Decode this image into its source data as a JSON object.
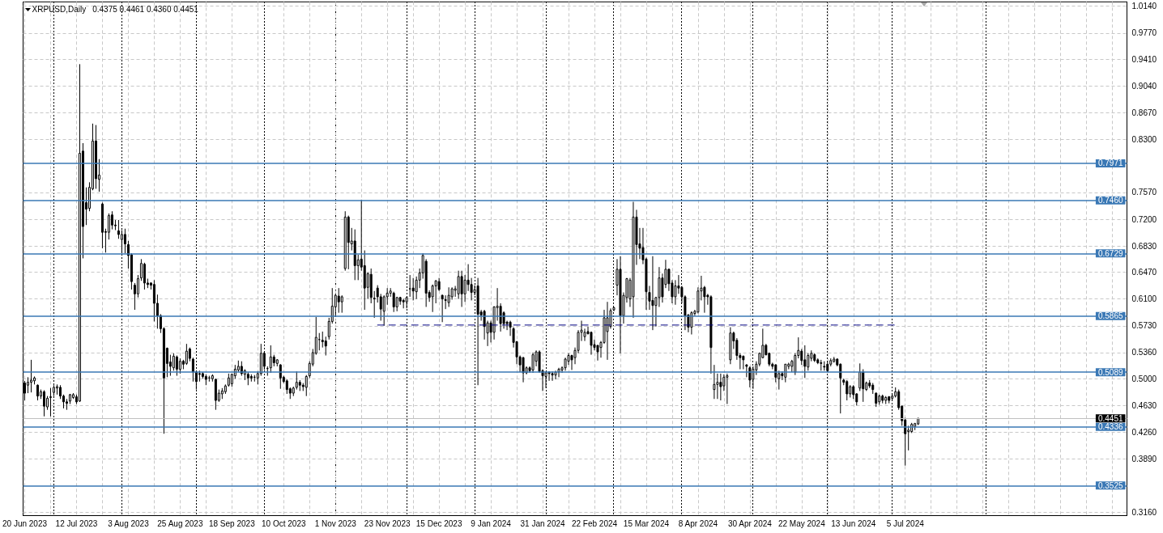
{
  "chart_data": {
    "type": "candlestick",
    "title": "XRPUSD,Daily",
    "subtitle": "0.4375 0.4461 0.4360 0.4451",
    "categories": [
      "20 Jun 2023",
      null,
      null,
      null,
      null,
      null,
      null,
      null,
      null,
      null,
      null,
      null,
      null,
      null,
      null,
      null,
      "12 Jul 2023",
      null,
      null,
      null,
      null,
      null,
      null,
      null,
      null,
      null,
      null,
      null,
      null,
      null,
      null,
      null,
      "3 Aug 2023",
      null,
      null,
      null,
      null,
      null,
      null,
      null,
      null,
      null,
      null,
      null,
      null,
      null,
      null,
      null,
      "25 Aug 2023",
      null,
      null,
      null,
      null,
      null,
      null,
      null,
      null,
      null,
      null,
      null,
      null,
      null,
      null,
      null,
      "18 Sep 2023",
      null,
      null,
      null,
      null,
      null,
      null,
      null,
      null,
      null,
      null,
      null,
      null,
      null,
      null,
      null,
      "10 Oct 2023",
      null,
      null,
      null,
      null,
      null,
      null,
      null,
      null,
      null,
      null,
      null,
      null,
      null,
      null,
      null,
      "1 Nov 2023",
      null,
      null,
      null,
      null,
      null,
      null,
      null,
      null,
      null,
      null,
      null,
      null,
      null,
      null,
      null,
      "23 Nov 2023",
      null,
      null,
      null,
      null,
      null,
      null,
      null,
      null,
      null,
      null,
      null,
      null,
      null,
      null,
      null,
      "15 Dec 2023",
      null,
      null,
      null,
      null,
      null,
      null,
      null,
      null,
      null,
      null,
      null,
      null,
      null,
      null,
      null,
      "9 Jan 2024",
      null,
      null,
      null,
      null,
      null,
      null,
      null,
      null,
      null,
      null,
      null,
      null,
      null,
      null,
      null,
      "31 Jan 2024",
      null,
      null,
      null,
      null,
      null,
      null,
      null,
      null,
      null,
      null,
      null,
      null,
      null,
      null,
      null,
      "22 Feb 2024",
      null,
      null,
      null,
      null,
      null,
      null,
      null,
      null,
      null,
      null,
      null,
      null,
      null,
      null,
      null,
      "15 Mar 2024",
      null,
      null,
      null,
      null,
      null,
      null,
      null,
      null,
      null,
      null,
      null,
      null,
      null,
      null,
      null,
      "8 Apr 2024",
      null,
      null,
      null,
      null,
      null,
      null,
      null,
      null,
      null,
      null,
      null,
      null,
      null,
      null,
      null,
      "30 Apr 2024",
      null,
      null,
      null,
      null,
      null,
      null,
      null,
      null,
      null,
      null,
      null,
      null,
      null,
      null,
      null,
      "22 May 2024",
      null,
      null,
      null,
      null,
      null,
      null,
      null,
      null,
      null,
      null,
      null,
      null,
      null,
      null,
      null,
      "13 Jun 2024",
      null,
      null,
      null,
      null,
      null,
      null,
      null,
      null,
      null,
      null,
      null,
      null,
      null,
      null,
      null,
      "5 Jul 2024",
      null,
      null,
      null,
      null,
      null,
      null,
      null,
      null,
      null,
      null,
      null,
      null,
      null,
      null,
      null,
      null,
      null,
      null,
      null,
      null,
      null,
      null,
      null,
      null,
      null,
      null,
      null,
      null,
      null,
      null,
      null,
      null,
      null,
      null,
      null,
      null,
      null,
      null,
      null,
      null,
      null,
      null,
      null,
      null,
      null,
      null,
      null,
      null,
      null,
      null,
      null,
      null,
      null,
      null,
      null,
      null,
      null,
      null,
      null,
      null,
      null,
      null,
      null,
      null,
      null,
      null,
      null,
      null
    ],
    "ohlc": [
      [
        0.494,
        0.497,
        0.47,
        0.48
      ],
      [
        0.491,
        0.502,
        0.48,
        0.495
      ],
      [
        0.495,
        0.526,
        0.481,
        0.498
      ],
      [
        0.497,
        0.503,
        0.492,
        0.501
      ],
      [
        0.491,
        0.492,
        0.47,
        0.476
      ],
      [
        0.476,
        0.485,
        0.472,
        0.482
      ],
      [
        0.482,
        0.484,
        0.448,
        0.462
      ],
      [
        0.461,
        0.476,
        0.457,
        0.473
      ],
      [
        0.474,
        0.487,
        0.448,
        0.475
      ],
      [
        0.481,
        0.491,
        0.476,
        0.488
      ],
      [
        0.487,
        0.492,
        0.478,
        0.489
      ],
      [
        0.488,
        0.491,
        0.472,
        0.476
      ],
      [
        0.476,
        0.478,
        0.459,
        0.468
      ],
      [
        0.468,
        0.472,
        0.457,
        0.466
      ],
      [
        0.469,
        0.479,
        0.465,
        0.478
      ],
      [
        0.474,
        0.48,
        0.472,
        0.478
      ],
      [
        0.475,
        0.478,
        0.465,
        0.468
      ],
      [
        0.469,
        0.934,
        0.468,
        0.811
      ],
      [
        0.814,
        0.825,
        0.666,
        0.71
      ],
      [
        0.743,
        0.764,
        0.712,
        0.734
      ],
      [
        0.735,
        0.771,
        0.731,
        0.764
      ],
      [
        0.762,
        0.852,
        0.76,
        0.828
      ],
      [
        0.828,
        0.85,
        0.762,
        0.776
      ],
      [
        0.775,
        0.803,
        0.758,
        0.781
      ],
      [
        0.741,
        0.743,
        0.68,
        0.702
      ],
      [
        0.703,
        0.707,
        0.674,
        0.702
      ],
      [
        0.702,
        0.728,
        0.692,
        0.725
      ],
      [
        0.726,
        0.731,
        0.706,
        0.712
      ],
      [
        0.712,
        0.719,
        0.705,
        0.711
      ],
      [
        0.704,
        0.719,
        0.693,
        0.699
      ],
      [
        0.692,
        0.705,
        0.673,
        0.699
      ],
      [
        0.699,
        0.707,
        0.673,
        0.686
      ],
      [
        0.685,
        0.69,
        0.652,
        0.67
      ],
      [
        0.671,
        0.673,
        0.623,
        0.634
      ],
      [
        0.629,
        0.632,
        0.595,
        0.617
      ],
      [
        0.617,
        0.643,
        0.612,
        0.638
      ],
      [
        0.639,
        0.665,
        0.635,
        0.659
      ],
      [
        0.658,
        0.66,
        0.623,
        0.632
      ],
      [
        0.632,
        0.638,
        0.625,
        0.63
      ],
      [
        0.632,
        0.633,
        0.623,
        0.629
      ],
      [
        0.63,
        0.636,
        0.579,
        0.604
      ],
      [
        0.604,
        0.616,
        0.569,
        0.587
      ],
      [
        0.587,
        0.589,
        0.563,
        0.569
      ],
      [
        0.569,
        0.571,
        0.424,
        0.501
      ],
      [
        0.542,
        0.543,
        0.502,
        0.521
      ],
      [
        0.523,
        0.533,
        0.504,
        0.517
      ],
      [
        0.515,
        0.535,
        0.511,
        0.531
      ],
      [
        0.53,
        0.532,
        0.504,
        0.513
      ],
      [
        0.513,
        0.528,
        0.507,
        0.524
      ],
      [
        0.524,
        0.526,
        0.513,
        0.52
      ],
      [
        0.521,
        0.548,
        0.519,
        0.538
      ],
      [
        0.541,
        0.543,
        0.524,
        0.528
      ],
      [
        0.527,
        0.529,
        0.496,
        0.509
      ],
      [
        0.509,
        0.511,
        0.485,
        0.496
      ],
      [
        0.507,
        0.511,
        0.496,
        0.506
      ],
      [
        0.507,
        0.509,
        0.5,
        0.503
      ],
      [
        0.503,
        0.506,
        0.491,
        0.499
      ],
      [
        0.501,
        0.504,
        0.496,
        0.501
      ],
      [
        0.5,
        0.506,
        0.496,
        0.504
      ],
      [
        0.499,
        0.5,
        0.457,
        0.47
      ],
      [
        0.47,
        0.485,
        0.468,
        0.48
      ],
      [
        0.479,
        0.487,
        0.472,
        0.483
      ],
      [
        0.482,
        0.492,
        0.479,
        0.49
      ],
      [
        0.491,
        0.507,
        0.489,
        0.501
      ],
      [
        0.493,
        0.507,
        0.489,
        0.506
      ],
      [
        0.504,
        0.519,
        0.5,
        0.513
      ],
      [
        0.512,
        0.525,
        0.509,
        0.517
      ],
      [
        0.517,
        0.524,
        0.504,
        0.507
      ],
      [
        0.506,
        0.513,
        0.498,
        0.511
      ],
      [
        0.506,
        0.509,
        0.491,
        0.501
      ],
      [
        0.503,
        0.506,
        0.496,
        0.501
      ],
      [
        0.502,
        0.505,
        0.496,
        0.502
      ],
      [
        0.501,
        0.51,
        0.492,
        0.507
      ],
      [
        0.507,
        0.548,
        0.504,
        0.535
      ],
      [
        0.535,
        0.537,
        0.512,
        0.517
      ],
      [
        0.514,
        0.517,
        0.504,
        0.514
      ],
      [
        0.515,
        0.546,
        0.508,
        0.53
      ],
      [
        0.53,
        0.533,
        0.517,
        0.522
      ],
      [
        0.521,
        0.527,
        0.517,
        0.526
      ],
      [
        0.519,
        0.52,
        0.486,
        0.501
      ],
      [
        0.502,
        0.504,
        0.494,
        0.496
      ],
      [
        0.497,
        0.499,
        0.479,
        0.485
      ],
      [
        0.486,
        0.488,
        0.472,
        0.48
      ],
      [
        0.48,
        0.489,
        0.476,
        0.487
      ],
      [
        0.488,
        0.51,
        0.485,
        0.495
      ],
      [
        0.495,
        0.498,
        0.483,
        0.491
      ],
      [
        0.491,
        0.494,
        0.483,
        0.489
      ],
      [
        0.488,
        0.505,
        0.476,
        0.503
      ],
      [
        0.504,
        0.524,
        0.501,
        0.521
      ],
      [
        0.52,
        0.541,
        0.517,
        0.536
      ],
      [
        0.535,
        0.585,
        0.533,
        0.557
      ],
      [
        0.554,
        0.563,
        0.539,
        0.554
      ],
      [
        0.553,
        0.565,
        0.543,
        0.551
      ],
      [
        0.552,
        0.558,
        0.532,
        0.545
      ],
      [
        0.558,
        0.584,
        0.554,
        0.579
      ],
      [
        0.579,
        0.625,
        0.576,
        0.6
      ],
      [
        0.599,
        0.617,
        0.585,
        0.615
      ],
      [
        0.614,
        0.625,
        0.591,
        0.606
      ],
      [
        0.606,
        0.615,
        0.591,
        0.613
      ],
      [
        0.652,
        0.731,
        0.649,
        0.723
      ],
      [
        0.723,
        0.725,
        0.651,
        0.688
      ],
      [
        0.686,
        0.708,
        0.677,
        0.69
      ],
      [
        0.69,
        0.706,
        0.636,
        0.656
      ],
      [
        0.656,
        0.671,
        0.636,
        0.664
      ],
      [
        0.665,
        0.747,
        0.649,
        0.654
      ],
      [
        0.656,
        0.677,
        0.595,
        0.625
      ],
      [
        0.626,
        0.647,
        0.61,
        0.645
      ],
      [
        0.644,
        0.652,
        0.604,
        0.612
      ],
      [
        0.611,
        0.621,
        0.584,
        0.61
      ],
      [
        0.625,
        0.629,
        0.605,
        0.613
      ],
      [
        0.613,
        0.617,
        0.58,
        0.596
      ],
      [
        0.593,
        0.615,
        0.573,
        0.613
      ],
      [
        0.613,
        0.625,
        0.602,
        0.618
      ],
      [
        0.618,
        0.625,
        0.613,
        0.621
      ],
      [
        0.618,
        0.62,
        0.592,
        0.599
      ],
      [
        0.599,
        0.613,
        0.593,
        0.612
      ],
      [
        0.612,
        0.613,
        0.602,
        0.607
      ],
      [
        0.608,
        0.61,
        0.597,
        0.606
      ],
      [
        0.606,
        0.613,
        0.597,
        0.612
      ],
      [
        0.624,
        0.643,
        0.613,
        0.624
      ],
      [
        0.625,
        0.639,
        0.608,
        0.621
      ],
      [
        0.62,
        0.641,
        0.61,
        0.636
      ],
      [
        0.636,
        0.652,
        0.625,
        0.646
      ],
      [
        0.646,
        0.673,
        0.638,
        0.67
      ],
      [
        0.662,
        0.665,
        0.599,
        0.618
      ],
      [
        0.619,
        0.622,
        0.606,
        0.612
      ],
      [
        0.613,
        0.63,
        0.592,
        0.628
      ],
      [
        0.628,
        0.636,
        0.604,
        0.635
      ],
      [
        0.634,
        0.639,
        0.621,
        0.623
      ],
      [
        0.615,
        0.616,
        0.578,
        0.61
      ],
      [
        0.609,
        0.615,
        0.596,
        0.608
      ],
      [
        0.605,
        0.626,
        0.599,
        0.615
      ],
      [
        0.613,
        0.626,
        0.609,
        0.624
      ],
      [
        0.622,
        0.628,
        0.613,
        0.624
      ],
      [
        0.617,
        0.649,
        0.61,
        0.641
      ],
      [
        0.641,
        0.649,
        0.599,
        0.617
      ],
      [
        0.617,
        0.643,
        0.606,
        0.636
      ],
      [
        0.636,
        0.658,
        0.621,
        0.63
      ],
      [
        0.63,
        0.639,
        0.608,
        0.619
      ],
      [
        0.619,
        0.629,
        0.615,
        0.623
      ],
      [
        0.628,
        0.639,
        0.491,
        0.589
      ],
      [
        0.592,
        0.595,
        0.58,
        0.588
      ],
      [
        0.593,
        0.595,
        0.554,
        0.572
      ],
      [
        0.563,
        0.58,
        0.545,
        0.577
      ],
      [
        0.577,
        0.58,
        0.55,
        0.564
      ],
      [
        0.564,
        0.6,
        0.554,
        0.599
      ],
      [
        0.598,
        0.625,
        0.58,
        0.6
      ],
      [
        0.6,
        0.604,
        0.565,
        0.576
      ],
      [
        0.591,
        0.593,
        0.569,
        0.576
      ],
      [
        0.578,
        0.58,
        0.567,
        0.576
      ],
      [
        0.578,
        0.58,
        0.559,
        0.571
      ],
      [
        0.569,
        0.571,
        0.543,
        0.55
      ],
      [
        0.551,
        0.552,
        0.52,
        0.53
      ],
      [
        0.53,
        0.532,
        0.509,
        0.519
      ],
      [
        0.529,
        0.53,
        0.495,
        0.508
      ],
      [
        0.508,
        0.517,
        0.506,
        0.515
      ],
      [
        0.515,
        0.517,
        0.508,
        0.511
      ],
      [
        0.512,
        0.536,
        0.508,
        0.533
      ],
      [
        0.524,
        0.539,
        0.517,
        0.537
      ],
      [
        0.537,
        0.539,
        0.508,
        0.51
      ],
      [
        0.511,
        0.513,
        0.483,
        0.504
      ],
      [
        0.503,
        0.51,
        0.487,
        0.508
      ],
      [
        0.509,
        0.51,
        0.497,
        0.507
      ],
      [
        0.507,
        0.51,
        0.497,
        0.505
      ],
      [
        0.505,
        0.511,
        0.499,
        0.509
      ],
      [
        0.509,
        0.515,
        0.502,
        0.513
      ],
      [
        0.512,
        0.517,
        0.508,
        0.515
      ],
      [
        0.515,
        0.529,
        0.511,
        0.527
      ],
      [
        0.524,
        0.535,
        0.519,
        0.532
      ],
      [
        0.532,
        0.533,
        0.512,
        0.526
      ],
      [
        0.529,
        0.543,
        0.52,
        0.539
      ],
      [
        0.539,
        0.567,
        0.535,
        0.564
      ],
      [
        0.564,
        0.58,
        0.552,
        0.567
      ],
      [
        0.558,
        0.569,
        0.552,
        0.564
      ],
      [
        0.565,
        0.572,
        0.561,
        0.562
      ],
      [
        0.564,
        0.565,
        0.533,
        0.546
      ],
      [
        0.547,
        0.554,
        0.539,
        0.543
      ],
      [
        0.546,
        0.546,
        0.525,
        0.537
      ],
      [
        0.543,
        0.552,
        0.529,
        0.55
      ],
      [
        0.55,
        0.595,
        0.548,
        0.584
      ],
      [
        0.565,
        0.606,
        0.526,
        0.584
      ],
      [
        0.572,
        0.597,
        0.569,
        0.594
      ],
      [
        0.595,
        0.599,
        0.593,
        0.598
      ],
      [
        0.629,
        0.665,
        0.615,
        0.651
      ],
      [
        0.651,
        0.669,
        0.535,
        0.587
      ],
      [
        0.587,
        0.619,
        0.576,
        0.615
      ],
      [
        0.612,
        0.639,
        0.605,
        0.638
      ],
      [
        0.61,
        0.639,
        0.599,
        0.636
      ],
      [
        0.613,
        0.744,
        0.584,
        0.723
      ],
      [
        0.723,
        0.733,
        0.657,
        0.685
      ],
      [
        0.686,
        0.708,
        0.665,
        0.68
      ],
      [
        0.681,
        0.708,
        0.658,
        0.664
      ],
      [
        0.665,
        0.667,
        0.595,
        0.62
      ],
      [
        0.619,
        0.628,
        0.595,
        0.607
      ],
      [
        0.608,
        0.669,
        0.567,
        0.601
      ],
      [
        0.601,
        0.613,
        0.572,
        0.612
      ],
      [
        0.612,
        0.654,
        0.599,
        0.639
      ],
      [
        0.639,
        0.645,
        0.605,
        0.613
      ],
      [
        0.63,
        0.664,
        0.625,
        0.651
      ],
      [
        0.651,
        0.652,
        0.621,
        0.631
      ],
      [
        0.632,
        0.636,
        0.604,
        0.613
      ],
      [
        0.613,
        0.636,
        0.602,
        0.628
      ],
      [
        0.628,
        0.643,
        0.617,
        0.625
      ],
      [
        0.626,
        0.628,
        0.604,
        0.613
      ],
      [
        0.613,
        0.615,
        0.567,
        0.587
      ],
      [
        0.588,
        0.589,
        0.564,
        0.571
      ],
      [
        0.571,
        0.593,
        0.561,
        0.591
      ],
      [
        0.59,
        0.595,
        0.587,
        0.593
      ],
      [
        0.592,
        0.626,
        0.59,
        0.621
      ],
      [
        0.621,
        0.642,
        0.608,
        0.625
      ],
      [
        0.626,
        0.628,
        0.591,
        0.613
      ],
      [
        0.615,
        0.617,
        0.602,
        0.613
      ],
      [
        0.613,
        0.615,
        0.507,
        0.543
      ],
      [
        0.485,
        0.519,
        0.472,
        0.492
      ],
      [
        0.492,
        0.507,
        0.472,
        0.495
      ],
      [
        0.495,
        0.507,
        0.47,
        0.489
      ],
      [
        0.49,
        0.506,
        0.483,
        0.502
      ],
      [
        0.502,
        0.507,
        0.465,
        0.504
      ],
      [
        0.526,
        0.571,
        0.52,
        0.563
      ],
      [
        0.563,
        0.565,
        0.541,
        0.552
      ],
      [
        0.553,
        0.556,
        0.526,
        0.532
      ],
      [
        0.532,
        0.535,
        0.513,
        0.529
      ],
      [
        0.531,
        0.532,
        0.513,
        0.526
      ],
      [
        0.519,
        0.52,
        0.502,
        0.517
      ],
      [
        0.515,
        0.517,
        0.488,
        0.498
      ],
      [
        0.499,
        0.517,
        0.486,
        0.513
      ],
      [
        0.512,
        0.524,
        0.505,
        0.52
      ],
      [
        0.52,
        0.536,
        0.517,
        0.535
      ],
      [
        0.529,
        0.569,
        0.528,
        0.546
      ],
      [
        0.546,
        0.548,
        0.532,
        0.533
      ],
      [
        0.535,
        0.536,
        0.517,
        0.52
      ],
      [
        0.52,
        0.522,
        0.513,
        0.517
      ],
      [
        0.519,
        0.52,
        0.495,
        0.502
      ],
      [
        0.5,
        0.511,
        0.485,
        0.507
      ],
      [
        0.507,
        0.51,
        0.498,
        0.504
      ],
      [
        0.502,
        0.52,
        0.495,
        0.52
      ],
      [
        0.517,
        0.522,
        0.513,
        0.52
      ],
      [
        0.517,
        0.526,
        0.509,
        0.524
      ],
      [
        0.509,
        0.535,
        0.505,
        0.532
      ],
      [
        0.532,
        0.557,
        0.528,
        0.539
      ],
      [
        0.538,
        0.541,
        0.519,
        0.525
      ],
      [
        0.526,
        0.546,
        0.501,
        0.517
      ],
      [
        0.516,
        0.535,
        0.511,
        0.532
      ],
      [
        0.528,
        0.539,
        0.524,
        0.535
      ],
      [
        0.533,
        0.535,
        0.523,
        0.525
      ],
      [
        0.526,
        0.528,
        0.52,
        0.522
      ],
      [
        0.522,
        0.526,
        0.511,
        0.521
      ],
      [
        0.517,
        0.524,
        0.511,
        0.516
      ],
      [
        0.52,
        0.524,
        0.509,
        0.511
      ],
      [
        0.52,
        0.528,
        0.517,
        0.525
      ],
      [
        0.524,
        0.53,
        0.522,
        0.527
      ],
      [
        0.527,
        0.528,
        0.517,
        0.519
      ],
      [
        0.52,
        0.521,
        0.452,
        0.501
      ],
      [
        0.498,
        0.5,
        0.491,
        0.495
      ],
      [
        0.496,
        0.498,
        0.47,
        0.479
      ],
      [
        0.479,
        0.491,
        0.474,
        0.489
      ],
      [
        0.489,
        0.491,
        0.472,
        0.478
      ],
      [
        0.479,
        0.48,
        0.463,
        0.468
      ],
      [
        0.487,
        0.521,
        0.483,
        0.509
      ],
      [
        0.509,
        0.513,
        0.468,
        0.486
      ],
      [
        0.485,
        0.496,
        0.483,
        0.494
      ],
      [
        0.494,
        0.498,
        0.487,
        0.49
      ],
      [
        0.491,
        0.494,
        0.479,
        0.485
      ],
      [
        0.48,
        0.481,
        0.461,
        0.466
      ],
      [
        0.468,
        0.478,
        0.464,
        0.476
      ],
      [
        0.476,
        0.478,
        0.466,
        0.47
      ],
      [
        0.47,
        0.476,
        0.465,
        0.474
      ],
      [
        0.475,
        0.476,
        0.466,
        0.47
      ],
      [
        0.473,
        0.479,
        0.47,
        0.476
      ],
      [
        0.476,
        0.488,
        0.474,
        0.482
      ],
      [
        0.482,
        0.485,
        0.457,
        0.46
      ],
      [
        0.462,
        0.463,
        0.435,
        0.442
      ],
      [
        0.443,
        0.446,
        0.38,
        0.424
      ],
      [
        0.427,
        0.435,
        0.401,
        0.429
      ],
      [
        0.427,
        0.439,
        0.425,
        0.437
      ],
      [
        0.434,
        0.439,
        0.429,
        0.438
      ],
      [
        0.4375,
        0.4461,
        0.436,
        0.4451
      ],
      null,
      null,
      null,
      null,
      null,
      null,
      null,
      null,
      null,
      null,
      null,
      null,
      null,
      null,
      null,
      null,
      null,
      null,
      null,
      null,
      null,
      null,
      null,
      null,
      null,
      null,
      null,
      null,
      null,
      null,
      null,
      null,
      null,
      null,
      null,
      null,
      null,
      null,
      null,
      null,
      null,
      null,
      null,
      null,
      null,
      null,
      null,
      null,
      null,
      null,
      null,
      null,
      null,
      null,
      null,
      null,
      null,
      null,
      null,
      null,
      null,
      null,
      null,
      null
    ],
    "color": "#000000",
    "ylim": [
      0.311,
      1.02
    ],
    "yticks": [
      {
        "value": 0.316,
        "label": "0.3160"
      },
      {
        "value": 0.389,
        "label": "0.3890"
      },
      {
        "value": 0.426,
        "label": "0.4260"
      },
      {
        "value": 0.463,
        "label": "0.4630"
      },
      {
        "value": 0.5,
        "label": "0.5000"
      },
      {
        "value": 0.536,
        "label": "0.5360"
      },
      {
        "value": 0.573,
        "label": "0.5730"
      },
      {
        "value": 0.61,
        "label": "0.6100"
      },
      {
        "value": 0.647,
        "label": "0.6470"
      },
      {
        "value": 0.683,
        "label": "0.6830"
      },
      {
        "value": 0.72,
        "label": "0.7200"
      },
      {
        "value": 0.757,
        "label": "0.7570"
      },
      {
        "value": 0.83,
        "label": "0.8300"
      },
      {
        "value": 0.867,
        "label": "0.8670"
      },
      {
        "value": 0.904,
        "label": "0.9040"
      },
      {
        "value": 0.941,
        "label": "0.9410"
      },
      {
        "value": 0.977,
        "label": "0.9770"
      },
      {
        "value": 1.014,
        "label": "1.0140"
      }
    ],
    "grid": true,
    "ref_lines": [
      {
        "axis": "y",
        "value": 0.7971,
        "label": "0.7971",
        "color": "#3a78b5"
      },
      {
        "axis": "y",
        "value": 0.746,
        "label": "0.7460",
        "color": "#3a78b5"
      },
      {
        "axis": "y",
        "value": 0.6729,
        "label": "0.6729",
        "color": "#3a78b5"
      },
      {
        "axis": "y",
        "value": 0.5865,
        "label": "0.5865",
        "color": "#3a78b5"
      },
      {
        "axis": "y",
        "value": 0.5089,
        "label": "0.5089",
        "color": "#3a78b5"
      },
      {
        "axis": "y",
        "value": 0.4336,
        "label": "0.4336",
        "color": "#3a78b5"
      },
      {
        "axis": "y",
        "value": 0.3525,
        "label": "0.3525",
        "color": "#3a78b5"
      },
      {
        "axis": "y",
        "value": 0.4451,
        "label": "0.4451",
        "color": "#c0c0c0"
      }
    ],
    "series": [
      {
        "type": "line",
        "color": "#000080",
        "line_style": "dashed",
        "values": [
          null,
          null,
          null,
          null,
          null,
          null,
          null,
          null,
          null,
          null,
          null,
          null,
          null,
          null,
          null,
          null,
          null,
          null,
          null,
          null,
          null,
          null,
          null,
          null,
          null,
          null,
          null,
          null,
          null,
          null,
          null,
          null,
          null,
          null,
          null,
          null,
          null,
          null,
          null,
          null,
          null,
          null,
          null,
          null,
          null,
          null,
          null,
          null,
          null,
          null,
          null,
          null,
          null,
          null,
          null,
          null,
          null,
          null,
          null,
          null,
          null,
          null,
          null,
          null,
          null,
          null,
          null,
          null,
          null,
          null,
          null,
          null,
          null,
          null,
          null,
          null,
          null,
          null,
          null,
          null,
          null,
          null,
          null,
          null,
          null,
          null,
          null,
          null,
          null,
          null,
          null,
          null,
          null,
          null,
          null,
          null,
          null,
          null,
          null,
          null,
          null,
          null,
          null,
          null,
          null,
          null,
          null,
          null,
          null,
          0.574,
          0.574,
          0.574,
          0.574,
          0.574,
          0.574,
          0.574,
          0.574,
          0.574,
          0.574,
          0.574,
          0.574,
          0.574,
          0.574,
          0.574,
          0.574,
          0.574,
          0.574,
          0.574,
          0.574,
          0.574,
          0.574,
          0.574,
          0.574,
          0.574,
          0.574,
          0.574,
          0.574,
          0.574,
          0.574,
          0.574,
          0.574,
          0.574,
          0.574,
          0.574,
          0.574,
          0.574,
          0.574,
          0.574,
          0.574,
          0.574,
          0.574,
          0.574,
          0.574,
          0.574,
          0.574,
          0.574,
          0.574,
          0.574,
          0.574,
          0.574,
          0.574,
          0.574,
          0.574,
          0.574,
          0.574,
          0.574,
          0.574,
          0.574,
          0.574,
          0.574,
          0.574,
          0.574,
          0.574,
          0.574,
          0.574,
          0.574,
          0.574,
          0.574,
          0.574,
          0.574,
          0.574,
          0.574,
          0.574,
          0.574,
          0.574,
          0.574,
          0.574,
          0.574,
          0.574,
          0.574,
          0.574,
          0.574,
          0.574,
          0.574,
          0.574,
          0.574,
          0.574,
          0.574,
          0.574,
          0.574,
          0.574,
          0.574,
          0.574,
          0.574,
          0.574,
          0.574,
          0.574,
          0.574,
          0.574,
          0.574,
          0.574,
          0.574,
          0.574,
          0.574,
          0.574,
          0.574,
          0.574,
          0.574,
          0.574,
          0.574,
          0.574,
          0.574,
          0.574,
          0.574,
          0.574,
          0.574,
          0.574,
          0.574,
          0.574,
          0.574,
          0.574,
          0.574,
          0.574,
          0.574,
          0.574,
          0.574,
          0.574,
          0.574,
          0.574,
          0.574,
          0.574,
          0.574,
          0.574,
          0.574,
          0.574,
          0.574,
          0.574,
          0.574,
          0.574,
          0.574,
          0.574,
          0.574,
          0.574,
          0.574,
          0.574,
          0.574,
          0.574,
          0.574,
          0.574,
          0.574,
          0.574,
          0.574,
          0.574,
          0.574,
          0.574,
          0.574,
          0.574,
          0.574,
          0.574,
          0.574,
          null,
          null,
          null,
          null,
          null,
          null,
          null,
          null,
          null,
          null,
          null,
          null,
          null,
          null,
          null,
          null,
          null,
          null,
          null,
          null,
          null,
          null,
          null,
          null,
          null,
          null,
          null,
          null,
          null,
          null,
          null,
          null,
          null,
          null,
          null,
          null,
          null,
          null,
          null,
          null,
          null,
          null,
          null,
          null,
          null,
          null,
          null,
          null,
          null,
          null,
          null,
          null,
          null,
          null,
          null,
          null,
          null,
          null,
          null,
          null,
          null,
          null,
          null,
          null,
          null,
          null,
          null,
          null,
          null,
          null,
          null
        ]
      }
    ]
  }
}
